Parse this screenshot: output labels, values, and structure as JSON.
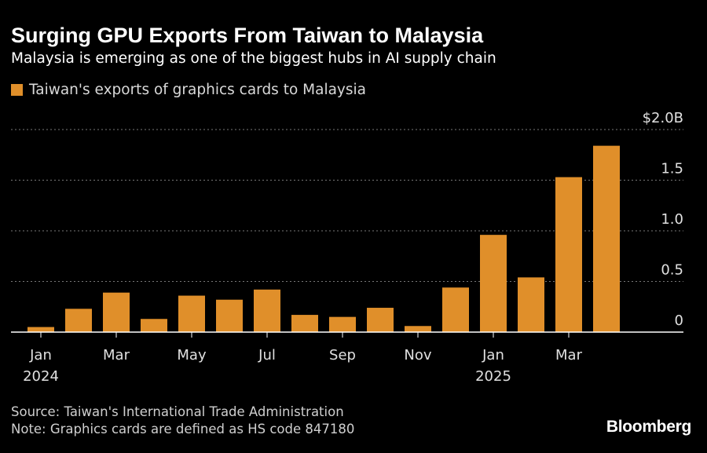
{
  "header": {
    "title": "Surging GPU Exports From Taiwan to Malaysia",
    "subtitle": "Malaysia is emerging as one of the biggest hubs in AI supply chain"
  },
  "legend": {
    "label": "Taiwan's exports of graphics cards to Malaysia"
  },
  "footer": {
    "source": "Source: Taiwan's International Trade Administration",
    "note": "Note: Graphics cards are defined as HS code 847180"
  },
  "brand": "Bloomberg",
  "colors": {
    "bar": "#e08f2a",
    "background": "#000000",
    "grid": "#777777",
    "text": "#ffffff"
  },
  "chart_data": {
    "type": "bar",
    "title": "Surging GPU Exports From Taiwan to Malaysia",
    "xlabel": "",
    "ylabel": "",
    "categories": [
      "Jan 2024",
      "Feb 2024",
      "Mar 2024",
      "Apr 2024",
      "May 2024",
      "Jun 2024",
      "Jul 2024",
      "Aug 2024",
      "Sep 2024",
      "Oct 2024",
      "Nov 2024",
      "Dec 2024",
      "Jan 2025",
      "Feb 2025",
      "Mar 2025",
      "Apr 2025"
    ],
    "series": [
      {
        "name": "Taiwan's exports of graphics cards to Malaysia",
        "values": [
          0.05,
          0.23,
          0.39,
          0.13,
          0.36,
          0.32,
          0.42,
          0.17,
          0.15,
          0.24,
          0.06,
          0.44,
          0.96,
          0.54,
          1.53,
          1.84
        ]
      }
    ],
    "ylim": [
      0,
      2.0
    ],
    "y_ticks": [
      {
        "value": 0,
        "label": "0"
      },
      {
        "value": 0.5,
        "label": "0.5"
      },
      {
        "value": 1.0,
        "label": "1.0"
      },
      {
        "value": 1.5,
        "label": "1.5"
      },
      {
        "value": 2.0,
        "label": "$2.0B"
      }
    ],
    "x_ticks": [
      {
        "index": 0,
        "label": "Jan",
        "year": "2024"
      },
      {
        "index": 2,
        "label": "Mar"
      },
      {
        "index": 4,
        "label": "May"
      },
      {
        "index": 6,
        "label": "Jul"
      },
      {
        "index": 8,
        "label": "Sep"
      },
      {
        "index": 10,
        "label": "Nov"
      },
      {
        "index": 12,
        "label": "Jan",
        "year": "2025"
      },
      {
        "index": 14,
        "label": "Mar"
      }
    ],
    "grid": true,
    "legend_position": "top-left"
  }
}
